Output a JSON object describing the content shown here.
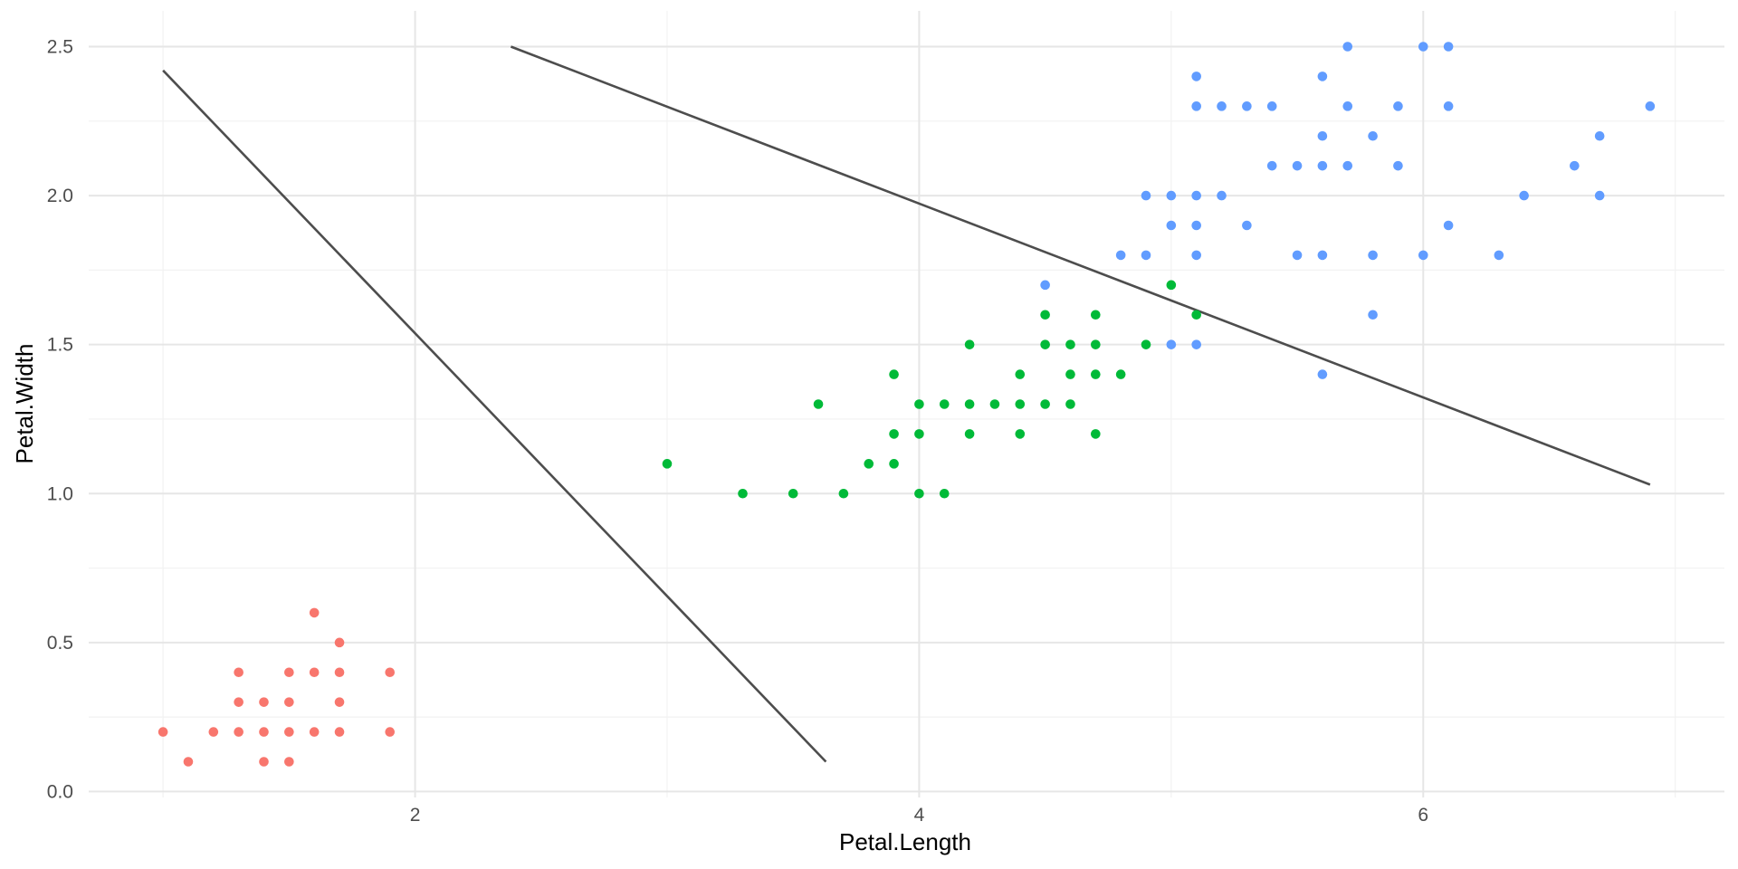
{
  "chart_data": {
    "type": "scatter",
    "title": "",
    "xlabel": "Petal.Length",
    "ylabel": "Petal.Width",
    "xlim": [
      0.705,
      7.195
    ],
    "ylim": [
      -0.02,
      2.62
    ],
    "x_ticks_major": [
      2,
      4,
      6
    ],
    "x_ticks_minor": [
      1,
      3,
      5,
      7
    ],
    "y_ticks_major": [
      0.0,
      0.5,
      1.0,
      1.5,
      2.0,
      2.5
    ],
    "y_tick_labels": [
      "0.0",
      "0.5",
      "1.0",
      "1.5",
      "2.0",
      "2.5"
    ],
    "y_ticks_minor": [
      0.25,
      0.75,
      1.25,
      1.75,
      2.25
    ],
    "grid": true,
    "legend": "none",
    "series": [
      {
        "color": "#F8766D",
        "points": [
          [
            1.0,
            0.2
          ],
          [
            1.1,
            0.1
          ],
          [
            1.2,
            0.2
          ],
          [
            1.3,
            0.2
          ],
          [
            1.3,
            0.3
          ],
          [
            1.3,
            0.4
          ],
          [
            1.4,
            0.1
          ],
          [
            1.4,
            0.2
          ],
          [
            1.4,
            0.3
          ],
          [
            1.5,
            0.1
          ],
          [
            1.5,
            0.2
          ],
          [
            1.5,
            0.3
          ],
          [
            1.5,
            0.4
          ],
          [
            1.6,
            0.2
          ],
          [
            1.6,
            0.4
          ],
          [
            1.6,
            0.6
          ],
          [
            1.7,
            0.2
          ],
          [
            1.7,
            0.3
          ],
          [
            1.7,
            0.4
          ],
          [
            1.7,
            0.5
          ],
          [
            1.9,
            0.2
          ],
          [
            1.9,
            0.4
          ]
        ]
      },
      {
        "color": "#00BA38",
        "points": [
          [
            3.0,
            1.1
          ],
          [
            3.3,
            1.0
          ],
          [
            3.5,
            1.0
          ],
          [
            3.6,
            1.3
          ],
          [
            3.7,
            1.0
          ],
          [
            3.8,
            1.1
          ],
          [
            3.9,
            1.1
          ],
          [
            3.9,
            1.2
          ],
          [
            3.9,
            1.4
          ],
          [
            4.0,
            1.0
          ],
          [
            4.0,
            1.2
          ],
          [
            4.0,
            1.3
          ],
          [
            4.1,
            1.0
          ],
          [
            4.1,
            1.3
          ],
          [
            4.2,
            1.2
          ],
          [
            4.2,
            1.3
          ],
          [
            4.2,
            1.5
          ],
          [
            4.3,
            1.3
          ],
          [
            4.4,
            1.2
          ],
          [
            4.4,
            1.3
          ],
          [
            4.4,
            1.4
          ],
          [
            4.5,
            1.3
          ],
          [
            4.5,
            1.5
          ],
          [
            4.5,
            1.6
          ],
          [
            4.6,
            1.3
          ],
          [
            4.6,
            1.4
          ],
          [
            4.6,
            1.5
          ],
          [
            4.7,
            1.2
          ],
          [
            4.7,
            1.4
          ],
          [
            4.7,
            1.5
          ],
          [
            4.7,
            1.6
          ],
          [
            4.8,
            1.4
          ],
          [
            4.9,
            1.5
          ],
          [
            5.0,
            1.7
          ],
          [
            5.1,
            1.6
          ]
        ]
      },
      {
        "color": "#619CFF",
        "points": [
          [
            4.5,
            1.7
          ],
          [
            4.8,
            1.8
          ],
          [
            4.9,
            1.8
          ],
          [
            4.9,
            2.0
          ],
          [
            5.0,
            1.5
          ],
          [
            5.0,
            1.9
          ],
          [
            5.0,
            2.0
          ],
          [
            5.1,
            1.5
          ],
          [
            5.1,
            1.8
          ],
          [
            5.1,
            1.9
          ],
          [
            5.1,
            2.0
          ],
          [
            5.1,
            2.3
          ],
          [
            5.1,
            2.4
          ],
          [
            5.2,
            2.0
          ],
          [
            5.2,
            2.3
          ],
          [
            5.3,
            1.9
          ],
          [
            5.3,
            2.3
          ],
          [
            5.4,
            2.1
          ],
          [
            5.4,
            2.3
          ],
          [
            5.5,
            1.8
          ],
          [
            5.5,
            2.1
          ],
          [
            5.6,
            1.4
          ],
          [
            5.6,
            1.8
          ],
          [
            5.6,
            2.1
          ],
          [
            5.6,
            2.2
          ],
          [
            5.6,
            2.4
          ],
          [
            5.7,
            2.1
          ],
          [
            5.7,
            2.3
          ],
          [
            5.7,
            2.5
          ],
          [
            5.8,
            1.6
          ],
          [
            5.8,
            1.8
          ],
          [
            5.8,
            2.2
          ],
          [
            5.9,
            2.1
          ],
          [
            5.9,
            2.3
          ],
          [
            6.0,
            1.8
          ],
          [
            6.0,
            2.5
          ],
          [
            6.1,
            1.9
          ],
          [
            6.1,
            2.3
          ],
          [
            6.1,
            2.5
          ],
          [
            6.3,
            1.8
          ],
          [
            6.4,
            2.0
          ],
          [
            6.6,
            2.1
          ],
          [
            6.7,
            2.0
          ],
          [
            6.7,
            2.2
          ],
          [
            6.9,
            2.3
          ]
        ]
      }
    ],
    "lines": [
      {
        "color": "#4d4d4d",
        "x": [
          1.0,
          3.63
        ],
        "y": [
          2.42,
          0.1
        ]
      },
      {
        "color": "#4d4d4d",
        "x": [
          2.38,
          6.9
        ],
        "y": [
          2.5,
          1.03
        ]
      }
    ]
  }
}
